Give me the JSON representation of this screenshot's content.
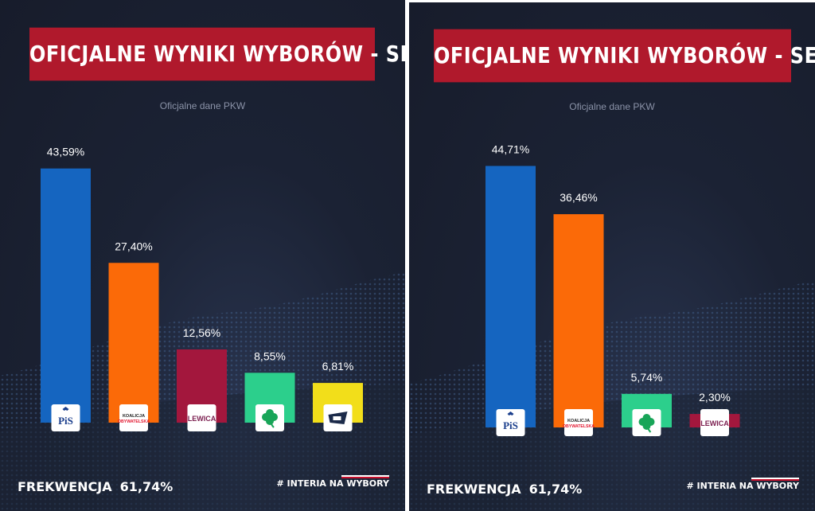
{
  "left": {
    "title": "OFICJALNE WYNIKI WYBORÓW - SEJM",
    "subtitle": "Oficjalne dane PKW",
    "turnout_label": "FREKWENCJA",
    "turnout_value": "61,74%",
    "brand": "# INTERIA NA WYBORY"
  },
  "right": {
    "title": "OFICJALNE WYNIKI WYBORÓW - SENAT",
    "subtitle": "Oficjalne dane PKW",
    "turnout_label": "FREKWENCJA",
    "turnout_value": "61,74%",
    "brand": "# INTERIA NA WYBORY"
  },
  "logos": {
    "pis": "PiS",
    "ko_top": "KOALICJA",
    "ko_bottom": "OBYWATELSKA",
    "lewica": "LEWICA"
  },
  "colors": {
    "title_bg": "#b0192c",
    "pis": "#1565c0",
    "ko": "#fb6a08",
    "lewica": "#a3173d",
    "psl": "#2ccf8c",
    "konfederacja": "#f2de1a"
  },
  "chart_data": [
    {
      "type": "bar",
      "title": "OFICJALNE WYNIKI WYBORÓW - SEJM",
      "categories": [
        "PiS",
        "KO",
        "LEWICA",
        "PSL",
        "Konfederacja"
      ],
      "values": [
        43.59,
        27.4,
        12.56,
        8.55,
        6.81
      ],
      "labels": [
        "43,59%",
        "27,40%",
        "12,56%",
        "8,55%",
        "6,81%"
      ],
      "colors": [
        "#1565c0",
        "#fb6a08",
        "#a3173d",
        "#2ccf8c",
        "#f2de1a"
      ],
      "logos": [
        "pis",
        "ko",
        "lewica",
        "psl",
        "konfederacja"
      ],
      "ylim": [
        0,
        46
      ],
      "grid": false
    },
    {
      "type": "bar",
      "title": "OFICJALNE WYNIKI WYBORÓW - SENAT",
      "categories": [
        "PiS",
        "KO",
        "PSL",
        "LEWICA"
      ],
      "values": [
        44.71,
        36.46,
        5.74,
        2.3
      ],
      "labels": [
        "44,71%",
        "36,46%",
        "5,74%",
        "2,30%"
      ],
      "colors": [
        "#1565c0",
        "#fb6a08",
        "#2ccf8c",
        "#a3173d"
      ],
      "logos": [
        "pis",
        "ko",
        "psl",
        "lewica"
      ],
      "ylim": [
        0,
        46
      ],
      "grid": false
    }
  ]
}
